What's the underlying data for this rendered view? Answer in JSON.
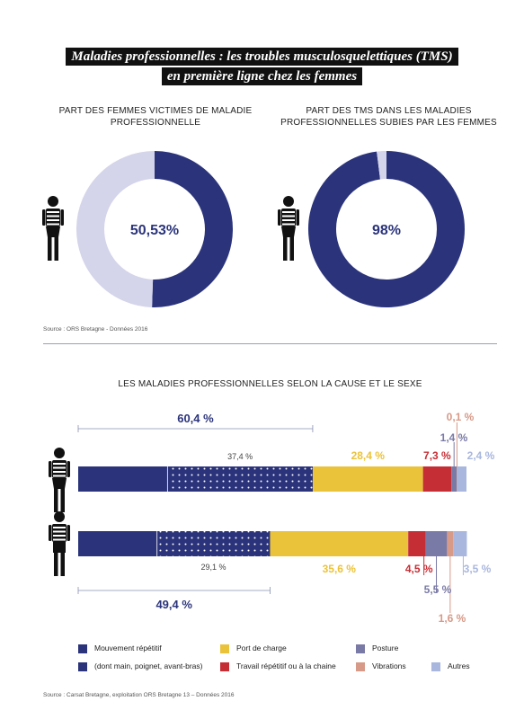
{
  "title": {
    "line1": "Maladies professionnelles : les troubles musculosquelettiques (TMS)",
    "line2": "en première ligne chez les femmes"
  },
  "donut1": {
    "title_line1": "PART DES FEMMES VICTIMES DE MALADIE",
    "title_line2": "PROFESSIONNELLE",
    "label": "50,53%"
  },
  "donut2": {
    "title_line1": "PART DES TMS DANS LES MALADIES",
    "title_line2": "PROFESSIONNELLES SUBIES PAR LES FEMMES",
    "label": "98%"
  },
  "source1": "Source : ORS Bretagne - Données 2016",
  "bar_section_title": "LES MALADIES PROFESSIONNELLES SELON LA CAUSE ET LE SEXE",
  "legend": [
    {
      "label": "Mouvement répétitif",
      "color": "#2b347b"
    },
    {
      "label": "(dont main, poignet, avant-bras)",
      "color": "#2b347b"
    },
    {
      "label": "Port de charge",
      "color": "#ebc33a"
    },
    {
      "label": "Travail répétitif ou à la chaine",
      "color": "#c62e35"
    },
    {
      "label": "Posture",
      "color": "#7a7aa6"
    },
    {
      "label": "Vibrations",
      "color": "#d79a88"
    },
    {
      "label": "Autres",
      "color": "#a9b7de"
    }
  ],
  "source2": "Source : Carsat Bretagne, exploitation ORS Bretagne 13 – Données 2016",
  "colors": {
    "navy": "#2b347b",
    "light_lavender": "#d4d4ea",
    "yellow": "#ebc33a",
    "red": "#c62e35",
    "purple": "#7a7aa6",
    "salmon": "#d79a88",
    "lightblue": "#a9b7de"
  },
  "chart_data": [
    {
      "type": "pie",
      "title": "PART DES FEMMES VICTIMES DE MALADIE PROFESSIONNELLE",
      "slices": [
        {
          "value": 50.53,
          "color": "#2b347b",
          "label": "50,53%"
        },
        {
          "value": 49.47,
          "color": "#d4d4ea"
        }
      ]
    },
    {
      "type": "pie",
      "title": "PART DES TMS DANS LES MALADIES PROFESSIONNELLES SUBIES PAR LES FEMMES",
      "slices": [
        {
          "value": 98,
          "color": "#2b347b",
          "label": "98%"
        },
        {
          "value": 2,
          "color": "#d4d4ea"
        }
      ]
    },
    {
      "type": "bar",
      "title": "LES MALADIES PROFESSIONNELLES SELON LA CAUSE ET LE SEXE",
      "stacked": true,
      "orientation": "horizontal",
      "rows": [
        "femmes",
        "hommes"
      ],
      "series": [
        {
          "name": "Mouvement répétitif",
          "values": [
            60.4,
            49.4
          ],
          "labels": [
            "60,4 %",
            "49,4 %"
          ]
        },
        {
          "name": "(dont main, poignet, avant-bras)",
          "values": [
            37.4,
            29.1
          ],
          "labels": [
            "37,4 %",
            "29,1 %"
          ],
          "subset_of": "Mouvement répétitif"
        },
        {
          "name": "Port de charge",
          "values": [
            28.4,
            35.6
          ],
          "labels": [
            "28,4 %",
            "35,6 %"
          ]
        },
        {
          "name": "Travail répétitif ou à la chaine",
          "values": [
            7.3,
            4.5
          ],
          "labels": [
            "7,3 %",
            "4,5 %"
          ]
        },
        {
          "name": "Posture",
          "values": [
            1.4,
            5.5
          ],
          "labels": [
            "1,4 %",
            "5,5 %"
          ]
        },
        {
          "name": "Vibrations",
          "values": [
            0.1,
            1.6
          ],
          "labels": [
            "0,1 %",
            "1,6 %"
          ]
        },
        {
          "name": "Autres",
          "values": [
            2.4,
            3.5
          ],
          "labels": [
            "2,4 %",
            "3,5 %"
          ]
        }
      ]
    }
  ]
}
